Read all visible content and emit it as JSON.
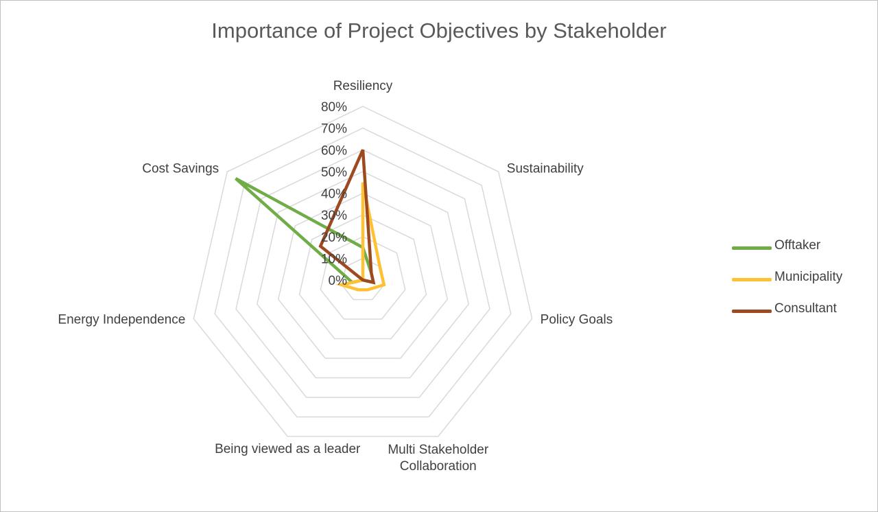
{
  "chart_data": {
    "type": "radar",
    "title": "Importance of Project Objectives by Stakeholder",
    "categories": [
      "Resiliency",
      "Sustainability",
      "Policy Goals",
      "Multi Stakeholder Collaboration",
      "Being viewed as a leader",
      "Energy Independence",
      "Cost Savings"
    ],
    "category_lines": [
      [
        "Resiliency"
      ],
      [
        "Sustainability"
      ],
      [
        "Policy Goals"
      ],
      [
        "Multi Stakeholder",
        "Collaboration"
      ],
      [
        "Being viewed as a leader"
      ],
      [
        "Energy Independence"
      ],
      [
        "Cost Savings"
      ]
    ],
    "r_ticks": [
      "0%",
      "10%",
      "20%",
      "30%",
      "40%",
      "50%",
      "60%",
      "70%",
      "80%"
    ],
    "r_max": 0.8,
    "legend_position": "right",
    "series": [
      {
        "name": "Offtaker",
        "color": "#70ad47",
        "values": [
          0.15,
          0.05,
          0.05,
          0.0,
          0.0,
          0.05,
          0.75
        ]
      },
      {
        "name": "Municipality",
        "color": "#ffc133",
        "values": [
          0.45,
          0.1,
          0.1,
          0.05,
          0.05,
          0.1,
          0.0
        ]
      },
      {
        "name": "Consultant",
        "color": "#9e4a20",
        "values": [
          0.6,
          0.05,
          0.05,
          0.0,
          0.0,
          0.0,
          0.25
        ]
      }
    ]
  }
}
